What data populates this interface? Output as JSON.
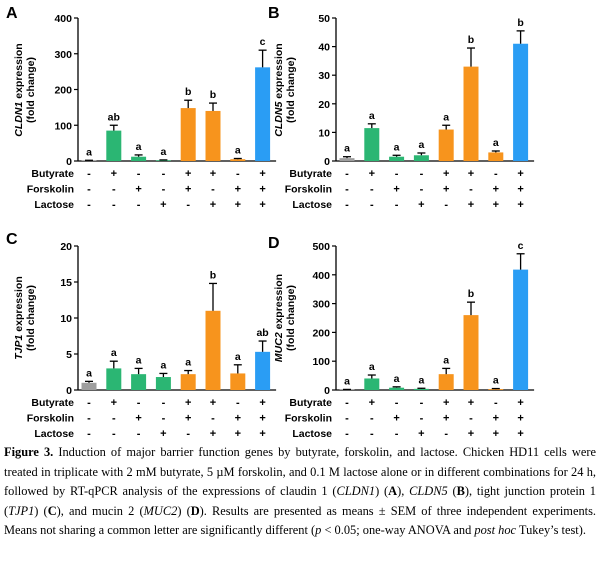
{
  "figure": {
    "row_labels": [
      "Butyrate",
      "Forskolin",
      "Lactose"
    ],
    "condition_signs": [
      [
        "-",
        "+",
        "-",
        "-",
        "+",
        "+",
        "-",
        "+"
      ],
      [
        "-",
        "-",
        "+",
        "-",
        "+",
        "-",
        "+",
        "+"
      ],
      [
        "-",
        "-",
        "-",
        "+",
        "-",
        "+",
        "+",
        "+"
      ]
    ],
    "bar_colors": [
      "#9e9e9e",
      "#2bb673",
      "#2bb673",
      "#2bb673",
      "#f7941d",
      "#f7941d",
      "#f7941d",
      "#2a9df4"
    ]
  },
  "chart_data": [
    {
      "panel": "A",
      "type": "bar",
      "gene": "CLDN1",
      "ylabel_gene": "CLDN1",
      "ylabel_rest": " expression",
      "ylabel_line2": "(fold change)",
      "ylim": [
        0,
        400
      ],
      "yticks": [
        "0",
        "100",
        "200",
        "300",
        "400"
      ],
      "values": [
        1,
        85,
        12,
        2,
        148,
        140,
        5,
        262
      ],
      "errors": [
        1,
        15,
        5,
        1,
        22,
        22,
        2,
        48
      ],
      "letters": [
        "a",
        "ab",
        "a",
        "a",
        "b",
        "b",
        "a",
        "c"
      ]
    },
    {
      "panel": "B",
      "type": "bar",
      "gene": "CLDN5",
      "ylabel_gene": "CLDN5",
      "ylabel_rest": " expression",
      "ylabel_line2": "(fold change)",
      "ylim": [
        0,
        50
      ],
      "yticks": [
        "0",
        "10",
        "20",
        "30",
        "40",
        "50"
      ],
      "values": [
        1,
        11.5,
        1.5,
        2,
        11,
        33,
        3,
        41
      ],
      "errors": [
        0.5,
        1.5,
        0.5,
        0.8,
        1.5,
        6.5,
        0.5,
        4.5
      ],
      "letters": [
        "a",
        "a",
        "a",
        "a",
        "a",
        "b",
        "a",
        "b"
      ]
    },
    {
      "panel": "C",
      "type": "bar",
      "gene": "TJP1",
      "ylabel_gene": "TJP1",
      "ylabel_rest": " expression",
      "ylabel_line2": "(fold change)",
      "ylim": [
        0,
        20
      ],
      "yticks": [
        "0",
        "5",
        "10",
        "15",
        "20"
      ],
      "values": [
        1,
        3,
        2.2,
        1.8,
        2.2,
        11,
        2.3,
        5.3
      ],
      "errors": [
        0.2,
        1,
        0.8,
        0.5,
        0.5,
        3.8,
        1.2,
        1.5
      ],
      "letters": [
        "a",
        "a",
        "a",
        "a",
        "a",
        "b",
        "a",
        "ab"
      ]
    },
    {
      "panel": "D",
      "type": "bar",
      "gene": "MUC2",
      "ylabel_gene": "MUC2",
      "ylabel_rest": " expression",
      "ylabel_line2": "(fold change)",
      "ylim": [
        0,
        500
      ],
      "yticks": [
        "0",
        "100",
        "200",
        "300",
        "400",
        "500"
      ],
      "values": [
        1,
        40,
        8,
        4,
        55,
        260,
        3,
        418
      ],
      "errors": [
        1,
        12,
        3,
        2,
        20,
        45,
        2,
        55
      ],
      "letters": [
        "a",
        "a",
        "a",
        "a",
        "a",
        "b",
        "a",
        "c"
      ]
    }
  ],
  "caption": {
    "label": "Figure 3.",
    "s1": " Induction of major barrier function genes by butyrate, forskolin, and lactose. Chicken HD11 cells were treated in triplicate with 2 mM butyrate, 5 µM forskolin, and 0.1 M lactose alone or in different combinations for 24 h, followed by RT-qPCR analysis of the expressions of claudin 1 (",
    "g1": "CLDN1",
    "s2": ") (",
    "pA": "A",
    "s3": "), ",
    "g2": "CLDN5",
    "s4": " (",
    "pB": "B",
    "s5": "), tight junction protein 1 (",
    "g3": "TJP1",
    "s6": ") (",
    "pC": "C",
    "s7": "), and mucin 2 (",
    "g4": "MUC2",
    "s8": ") (",
    "pD": "D",
    "s9": "). Results are presented as means ± SEM of three independent experiments. Means not sharing a common letter are significantly different (",
    "p": "p",
    "s10": " < 0.05; one-way ANOVA and ",
    "posthoc": "post hoc",
    "s11": " Tukey’s test)."
  }
}
